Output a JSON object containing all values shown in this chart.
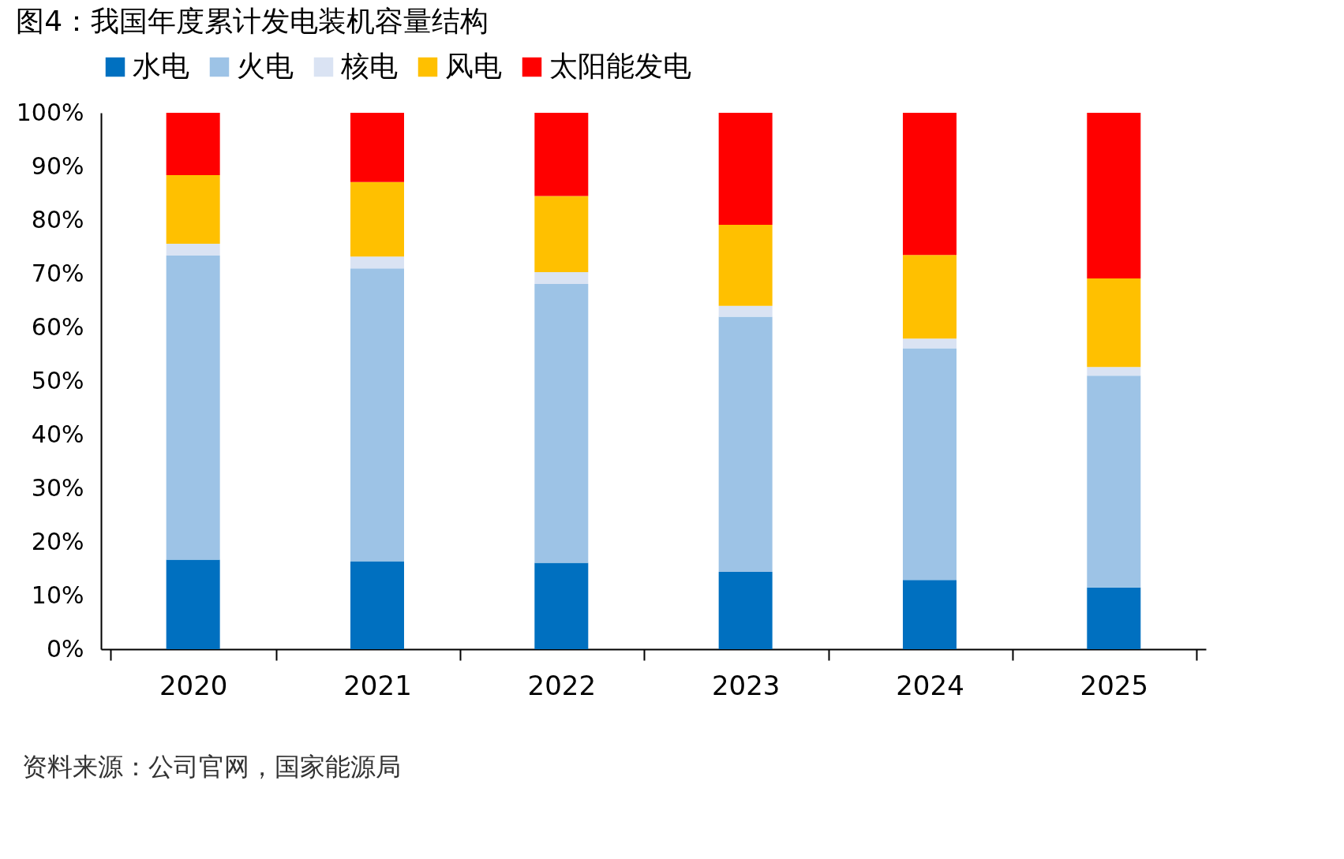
{
  "chart_data": {
    "type": "bar",
    "stacked": true,
    "title": "图4：我国年度累计发电装机容量结构",
    "categories": [
      "2020",
      "2021",
      "2022",
      "2023",
      "2024",
      "2025"
    ],
    "series": [
      {
        "name": "水电",
        "color": "#0070c0",
        "values": [
          16.7,
          16.4,
          16.1,
          14.4,
          12.9,
          11.5
        ]
      },
      {
        "name": "火电",
        "color": "#9dc3e6",
        "values": [
          56.7,
          54.6,
          52.0,
          47.6,
          43.2,
          39.5
        ]
      },
      {
        "name": "核电",
        "color": "#dae3f3",
        "values": [
          2.2,
          2.2,
          2.2,
          2.0,
          1.8,
          1.6
        ]
      },
      {
        "name": "风电",
        "color": "#ffc000",
        "values": [
          12.8,
          13.9,
          14.2,
          15.1,
          15.6,
          16.5
        ]
      },
      {
        "name": "太阳能发电",
        "color": "#ff0000",
        "values": [
          11.6,
          12.9,
          15.5,
          20.9,
          26.5,
          30.9
        ]
      }
    ],
    "ylim": [
      0,
      100
    ],
    "yticks": [
      {
        "value": 0,
        "label": "0%"
      },
      {
        "value": 10,
        "label": "10%"
      },
      {
        "value": 20,
        "label": "20%"
      },
      {
        "value": 30,
        "label": "30%"
      },
      {
        "value": 40,
        "label": "40%"
      },
      {
        "value": 50,
        "label": "50%"
      },
      {
        "value": 60,
        "label": "60%"
      },
      {
        "value": 70,
        "label": "70%"
      },
      {
        "value": 80,
        "label": "80%"
      },
      {
        "value": 90,
        "label": "90%"
      },
      {
        "value": 100,
        "label": "100%"
      }
    ],
    "grid": false,
    "legend": "top",
    "annotations": [
      "资料来源：公司官网，国家能源局"
    ]
  }
}
